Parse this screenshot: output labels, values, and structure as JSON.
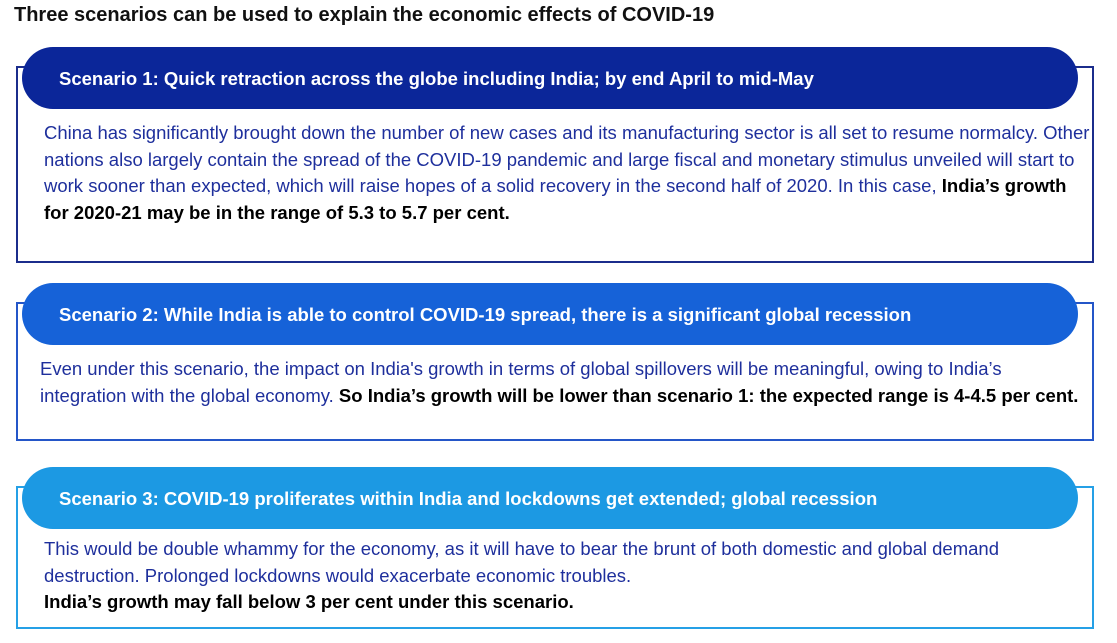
{
  "title": "Three scenarios can be used to explain the economic effects of COVID-19",
  "scenarios": [
    {
      "heading": "Scenario 1: Quick retraction across the globe including India; by end April to mid-May",
      "body": "China has significantly brought down the number of new cases and its manufacturing sector is all set to resume normalcy. Other nations also largely contain the spread of the COVID-19 pandemic and large fiscal and monetary stimulus unveiled will start to work sooner than expected, which will raise hopes of a solid recovery in the second half of 2020. In this case, ",
      "highlight": "India’s growth for 2020-21 may be in the range of 5.3 to 5.7 per cent.",
      "color": "#0b2699"
    },
    {
      "heading": "Scenario 2: While India is able to control COVID-19 spread, there is a significant global recession",
      "body": "Even under this scenario, the impact on India's growth in terms of global spillovers will be meaningful, owing to India’s integration with the global economy. ",
      "highlight": "So India’s growth will be lower than scenario 1: the expected range is 4-4.5 per cent.",
      "color": "#1662d8"
    },
    {
      "heading": "Scenario 3: COVID-19 proliferates within India and lockdowns get extended; global recession",
      "body": "This would be double whammy for the economy, as it will have to bear the brunt of both domestic and global demand destruction. Prolonged lockdowns would exacerbate economic troubles.",
      "highlight": "India’s growth may fall below 3 per cent under this scenario.",
      "color": "#1c99e3"
    }
  ]
}
